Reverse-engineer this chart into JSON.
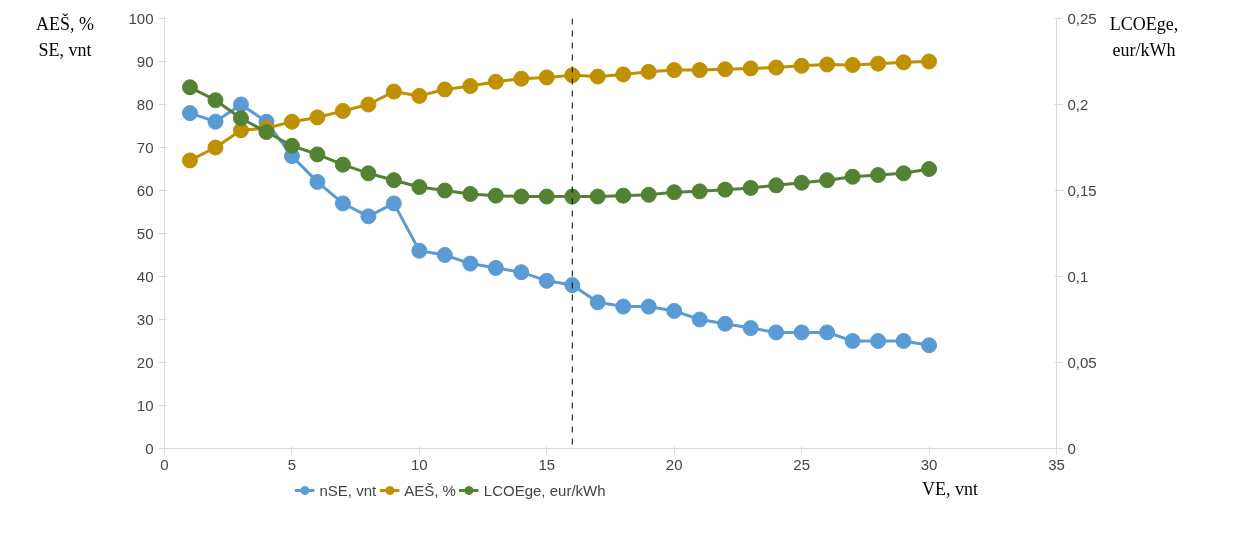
{
  "chart_data": {
    "type": "line",
    "xlabel": "VE, vnt",
    "ylabel": "AEŠ, %\nSE, vnt",
    "y2label": "LCOEge,\neur/kWh",
    "x": [
      1,
      2,
      3,
      4,
      5,
      6,
      7,
      8,
      9,
      10,
      11,
      12,
      13,
      14,
      15,
      16,
      17,
      18,
      19,
      20,
      21,
      22,
      23,
      24,
      25,
      26,
      27,
      28,
      29,
      30
    ],
    "series": [
      {
        "name": "nSE, vnt",
        "color": "#5b9bd5",
        "values": [
          78,
          76,
          80,
          76,
          68,
          62,
          57,
          54,
          57,
          46,
          45,
          43,
          42,
          41,
          39,
          38,
          34,
          33,
          33,
          32,
          30,
          29,
          28,
          27,
          27,
          27,
          25,
          25,
          25,
          24
        ]
      },
      {
        "name": "AEŠ, %",
        "color": "#bf9000",
        "values": [
          67,
          70,
          74,
          74.5,
          76,
          77,
          78.5,
          80,
          83,
          82,
          83.5,
          84.3,
          85.3,
          86,
          86.3,
          86.8,
          86.5,
          87,
          87.6,
          88,
          88,
          88.2,
          88.4,
          88.6,
          89,
          89.3,
          89.2,
          89.5,
          89.8,
          90
        ]
      },
      {
        "name": "LCOEge, eur/kWh",
        "color": "#548235",
        "axis": "y2",
        "values": [
          0.21,
          0.2025,
          0.192,
          0.184,
          0.176,
          0.171,
          0.165,
          0.16,
          0.156,
          0.152,
          0.15,
          0.148,
          0.147,
          0.1465,
          0.1465,
          0.1465,
          0.1465,
          0.147,
          0.1475,
          0.149,
          0.1495,
          0.1505,
          0.1515,
          0.153,
          0.1545,
          0.156,
          0.158,
          0.159,
          0.16,
          0.1625
        ]
      }
    ],
    "xlim": [
      0,
      35
    ],
    "xticks": [
      0,
      5,
      10,
      15,
      20,
      25,
      30,
      35
    ],
    "ylim": [
      0,
      100
    ],
    "yticks": [
      0,
      10,
      20,
      30,
      40,
      50,
      60,
      70,
      80,
      90,
      100
    ],
    "y2lim": [
      0,
      0.25
    ],
    "y2ticks": [
      {
        "value": 0,
        "label": "0"
      },
      {
        "value": 0.05,
        "label": "0,05"
      },
      {
        "value": 0.1,
        "label": "0,1"
      },
      {
        "value": 0.15,
        "label": "0,15"
      },
      {
        "value": 0.2,
        "label": "0,2"
      },
      {
        "value": 0.25,
        "label": "0,25"
      }
    ],
    "ref_lines": [
      {
        "axis": "x",
        "value": 16,
        "label": null,
        "color": "#000000",
        "line_style": "dashed"
      }
    ],
    "marker": "circle",
    "line_style": "solid",
    "grid": false,
    "legend": "bottom"
  }
}
